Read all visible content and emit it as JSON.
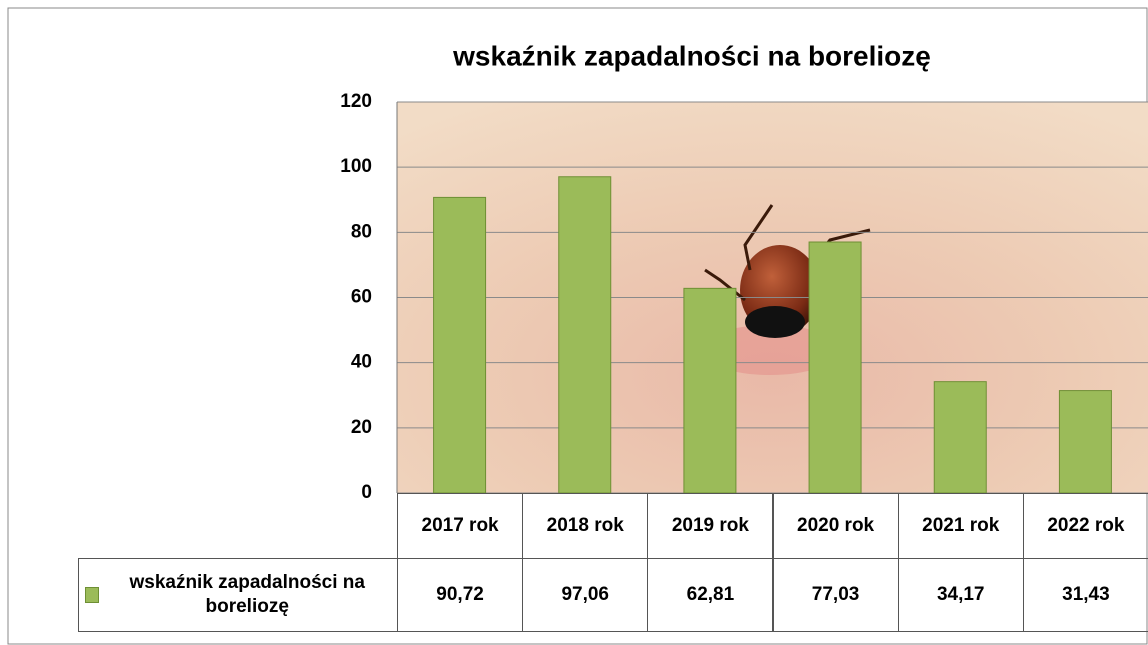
{
  "chart_data": {
    "type": "bar",
    "title": "wskaźnik zapadalności na boreliozę",
    "categories": [
      "2017 rok",
      "2018 rok",
      "2019 rok",
      "2020 rok",
      "2021 rok",
      "2022 rok"
    ],
    "series": [
      {
        "name": "wskaźnik zapadalności na boreliozę",
        "color": "#9bbb59",
        "values": [
          90.72,
          97.06,
          62.81,
          77.03,
          34.17,
          31.43
        ],
        "value_labels": [
          "90,72",
          "97,06",
          "62,81",
          "77,03",
          "34,17",
          "31,43"
        ]
      }
    ],
    "ylim": [
      0,
      120
    ],
    "yticks": [
      0,
      20,
      40,
      60,
      80,
      100,
      120
    ],
    "grid": true
  }
}
